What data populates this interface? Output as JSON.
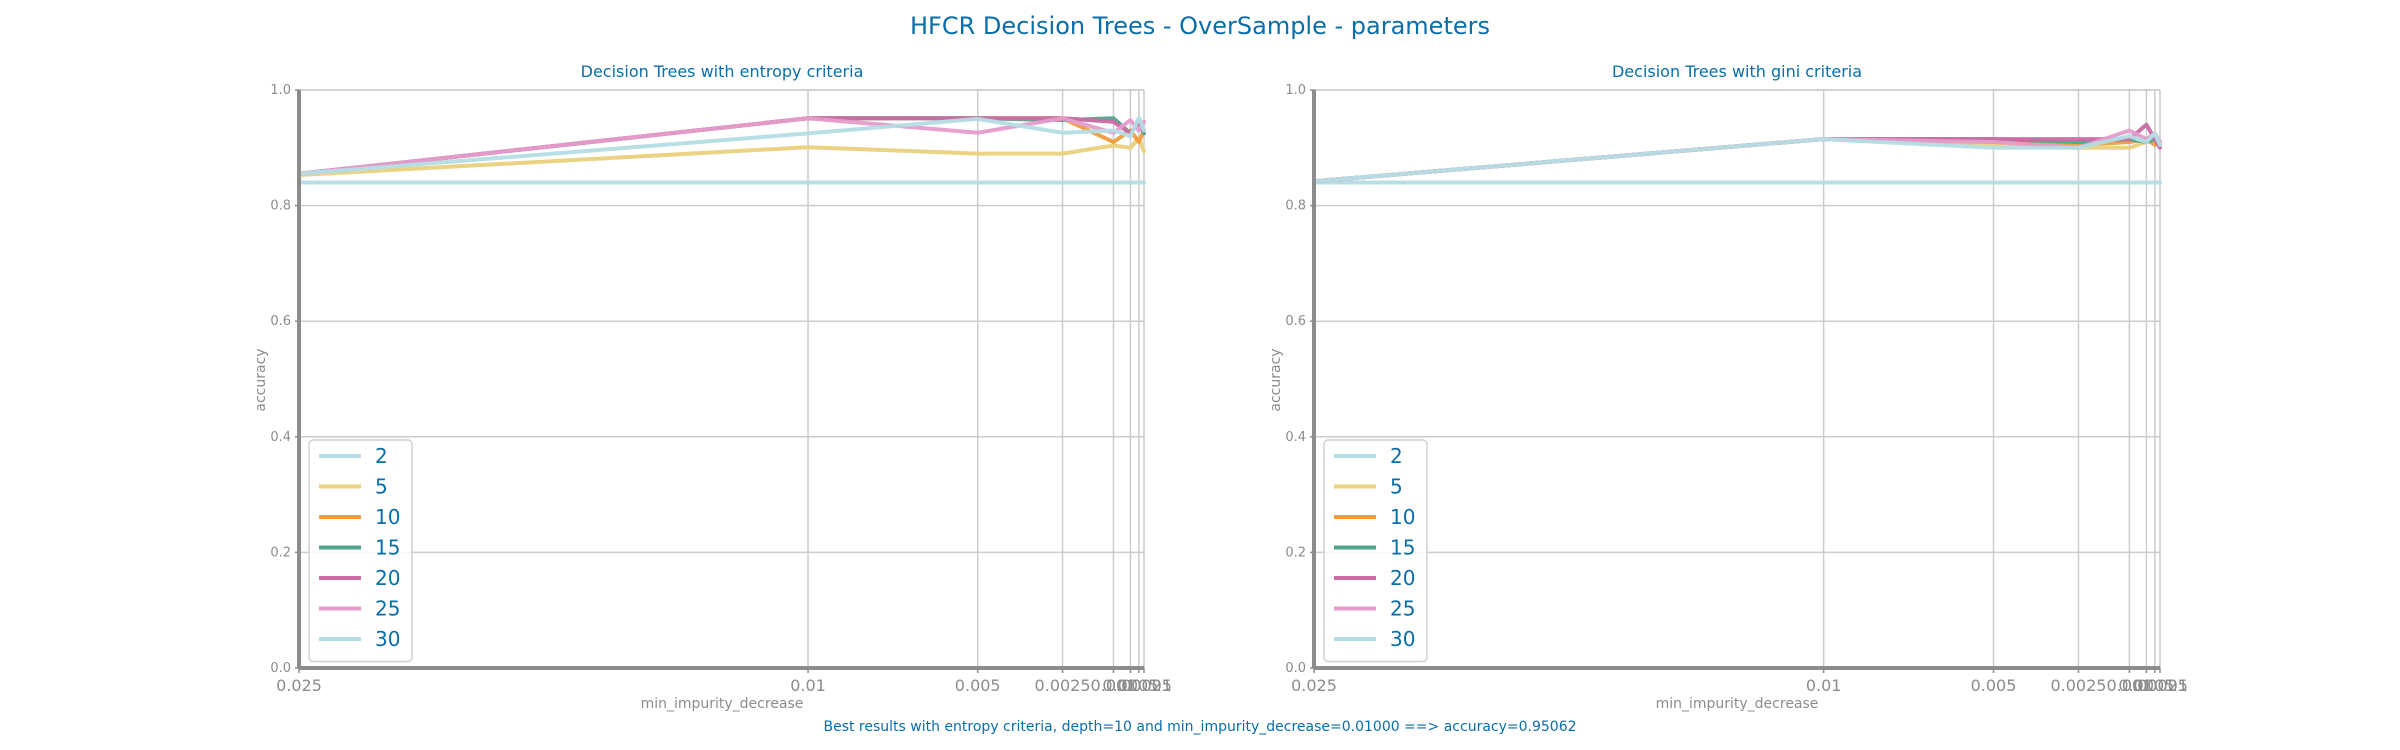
{
  "suptitle": "HFCR Decision Trees - OverSample - parameters",
  "footer": "Best results with entropy criteria, depth=10 and min_impurity_decrease=0.01000 ==> accuracy=0.95062",
  "colors": {
    "title": "#0a6ea8",
    "axis": "#8c8c8c",
    "grid": "#cccccc"
  },
  "chart_data": [
    {
      "type": "line",
      "title": "Decision Trees with entropy criteria",
      "xlabel": "min_impurity_decrease",
      "ylabel": "accuracy",
      "ylim": [
        0,
        1
      ],
      "yticks": [
        "0.0",
        "0.2",
        "0.4",
        "0.6",
        "0.8",
        "1.0"
      ],
      "x": [
        0.025,
        0.01,
        0.005,
        0.0025,
        0.001,
        0.0005,
        0.00025,
        0.0001
      ],
      "xtick_labels": [
        "0.025",
        "0.01",
        "0.005",
        "0.0025",
        "0.001",
        "0.0005",
        "0.00025",
        "0.0001"
      ],
      "xscale": "reversed",
      "grid": true,
      "legend_position": "lower left",
      "series": [
        {
          "name": "2",
          "color": "#b4dde4",
          "values": [
            0.84,
            0.84,
            0.84,
            0.84,
            0.84,
            0.84,
            0.84,
            0.84
          ]
        },
        {
          "name": "5",
          "color": "#ead17d",
          "values": [
            0.853,
            0.901,
            0.89,
            0.89,
            0.904,
            0.9,
            0.917,
            0.894
          ]
        },
        {
          "name": "10",
          "color": "#ee9d3f",
          "values": [
            0.855,
            0.951,
            0.951,
            0.951,
            0.91,
            0.93,
            0.91,
            0.93
          ]
        },
        {
          "name": "15",
          "color": "#4fa58c",
          "values": [
            0.855,
            0.951,
            0.951,
            0.948,
            0.951,
            0.925,
            0.945,
            0.925
          ]
        },
        {
          "name": "20",
          "color": "#cd6aa5",
          "values": [
            0.855,
            0.951,
            0.951,
            0.951,
            0.945,
            0.925,
            0.945,
            0.93
          ]
        },
        {
          "name": "25",
          "color": "#e59ccc",
          "values": [
            0.855,
            0.951,
            0.926,
            0.951,
            0.926,
            0.948,
            0.93,
            0.945
          ]
        },
        {
          "name": "30",
          "color": "#b4dde4",
          "values": [
            0.855,
            0.925,
            0.95,
            0.926,
            0.93,
            0.92,
            0.952,
            0.93
          ]
        }
      ]
    },
    {
      "type": "line",
      "title": "Decision Trees with gini criteria",
      "xlabel": "min_impurity_decrease",
      "ylabel": "accuracy",
      "ylim": [
        0,
        1
      ],
      "yticks": [
        "0.0",
        "0.2",
        "0.4",
        "0.6",
        "0.8",
        "1.0"
      ],
      "x": [
        0.025,
        0.01,
        0.005,
        0.0025,
        0.001,
        0.0005,
        0.00025,
        0.0001
      ],
      "xtick_labels": [
        "0.025",
        "0.01",
        "0.005",
        "0.0025",
        "0.001",
        "0.0005",
        "0.00025",
        "0.0001"
      ],
      "xscale": "reversed",
      "grid": true,
      "legend_position": "lower left",
      "series": [
        {
          "name": "2",
          "color": "#b4dde4",
          "values": [
            0.84,
            0.84,
            0.84,
            0.84,
            0.84,
            0.84,
            0.84,
            0.84
          ]
        },
        {
          "name": "5",
          "color": "#ead17d",
          "values": [
            0.842,
            0.915,
            0.905,
            0.9,
            0.9,
            0.91,
            0.915,
            0.905
          ]
        },
        {
          "name": "10",
          "color": "#ee9d3f",
          "values": [
            0.842,
            0.915,
            0.91,
            0.905,
            0.91,
            0.915,
            0.905,
            0.91
          ]
        },
        {
          "name": "15",
          "color": "#4fa58c",
          "values": [
            0.842,
            0.915,
            0.915,
            0.91,
            0.915,
            0.91,
            0.915,
            0.905
          ]
        },
        {
          "name": "20",
          "color": "#cd6aa5",
          "values": [
            0.842,
            0.915,
            0.915,
            0.915,
            0.915,
            0.94,
            0.915,
            0.9
          ]
        },
        {
          "name": "25",
          "color": "#e59ccc",
          "values": [
            0.842,
            0.915,
            0.91,
            0.9,
            0.93,
            0.915,
            0.925,
            0.91
          ]
        },
        {
          "name": "30",
          "color": "#b4dde4",
          "values": [
            0.842,
            0.915,
            0.9,
            0.9,
            0.92,
            0.91,
            0.925,
            0.905
          ]
        }
      ]
    }
  ]
}
